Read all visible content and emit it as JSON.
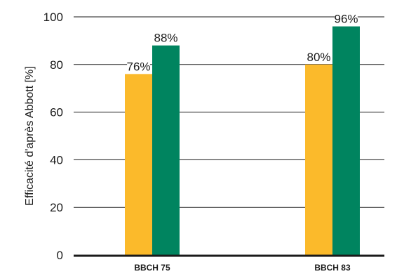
{
  "chart_data": {
    "type": "bar",
    "categories": [
      "BBCH 75",
      "BBCH 83"
    ],
    "series": [
      {
        "values": [
          76,
          80
        ],
        "labels": [
          "76%",
          "80%"
        ],
        "color": "#FBBA2B"
      },
      {
        "values": [
          88,
          96
        ],
        "labels": [
          "88%",
          "96%"
        ],
        "color": "#00845F"
      }
    ],
    "ylabel": "Efficacité d'après Abbott [%]",
    "ylim": [
      0,
      100
    ],
    "yticks": [
      0,
      20,
      40,
      60,
      80,
      100
    ],
    "grid": true,
    "axis_color": "#1a1a1a"
  }
}
